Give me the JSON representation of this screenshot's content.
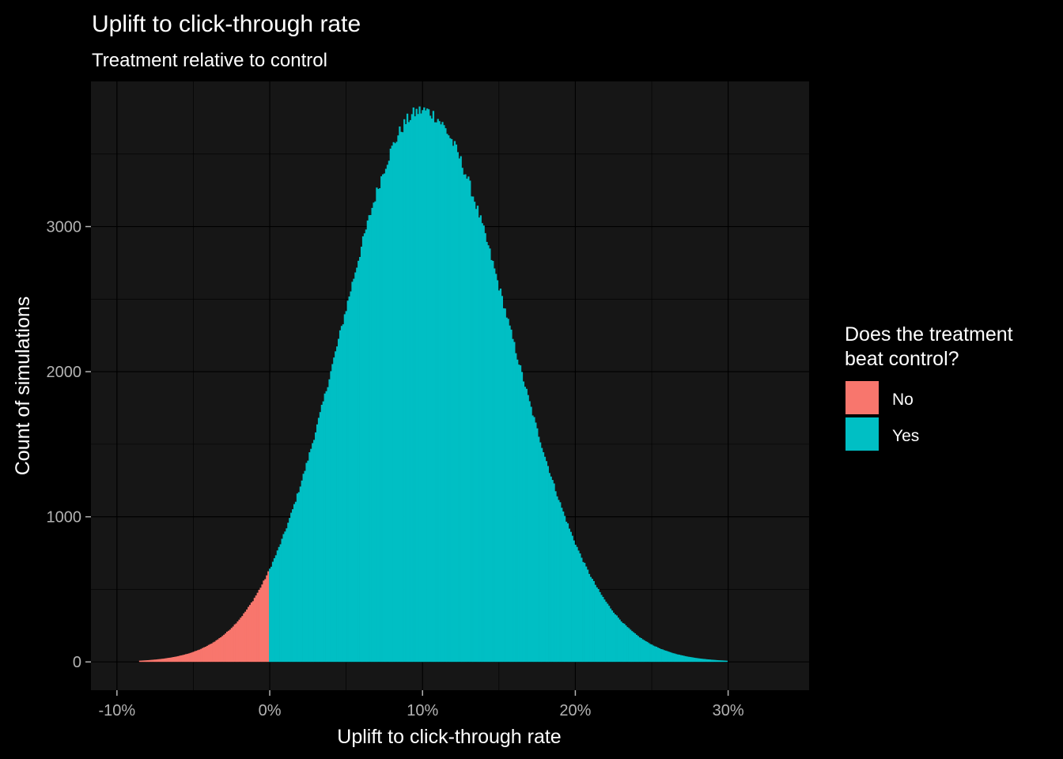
{
  "chart_data": {
    "type": "bar",
    "subtype": "histogram",
    "title": "Uplift to click-through rate",
    "subtitle": "Treatment relative to control",
    "xlabel": "Uplift to click-through rate",
    "ylabel": "Count of simulations",
    "xlim": [
      -0.117,
      0.353
    ],
    "ylim": [
      -195,
      4000
    ],
    "x_ticks": [
      -0.1,
      0,
      0.1,
      0.2,
      0.3
    ],
    "x_tick_labels": [
      "-10%",
      "0%",
      "10%",
      "20%",
      "30%"
    ],
    "y_ticks": [
      0,
      1000,
      2000,
      3000
    ],
    "y_tick_labels": [
      "0",
      "1000",
      "2000",
      "3000"
    ],
    "grid": true,
    "distribution": {
      "shape": "approximately normal, slightly right-skewed",
      "peak_x": 0.1,
      "peak_count": 3800,
      "sd_left": 0.053,
      "sd_right": 0.057,
      "x_min": -0.085,
      "x_max": 0.3
    },
    "split_at": 0,
    "series": [
      {
        "name": "No",
        "color": "#F8766D",
        "range": "x < 0%"
      },
      {
        "name": "Yes",
        "color": "#00BFC4",
        "range": "x >= 0%"
      }
    ],
    "legend": {
      "title_lines": [
        "Does the treatment",
        "beat control?"
      ],
      "position": "right",
      "entries": [
        {
          "label": "No",
          "color": "#F8766D"
        },
        {
          "label": "Yes",
          "color": "#00BFC4"
        }
      ]
    }
  }
}
